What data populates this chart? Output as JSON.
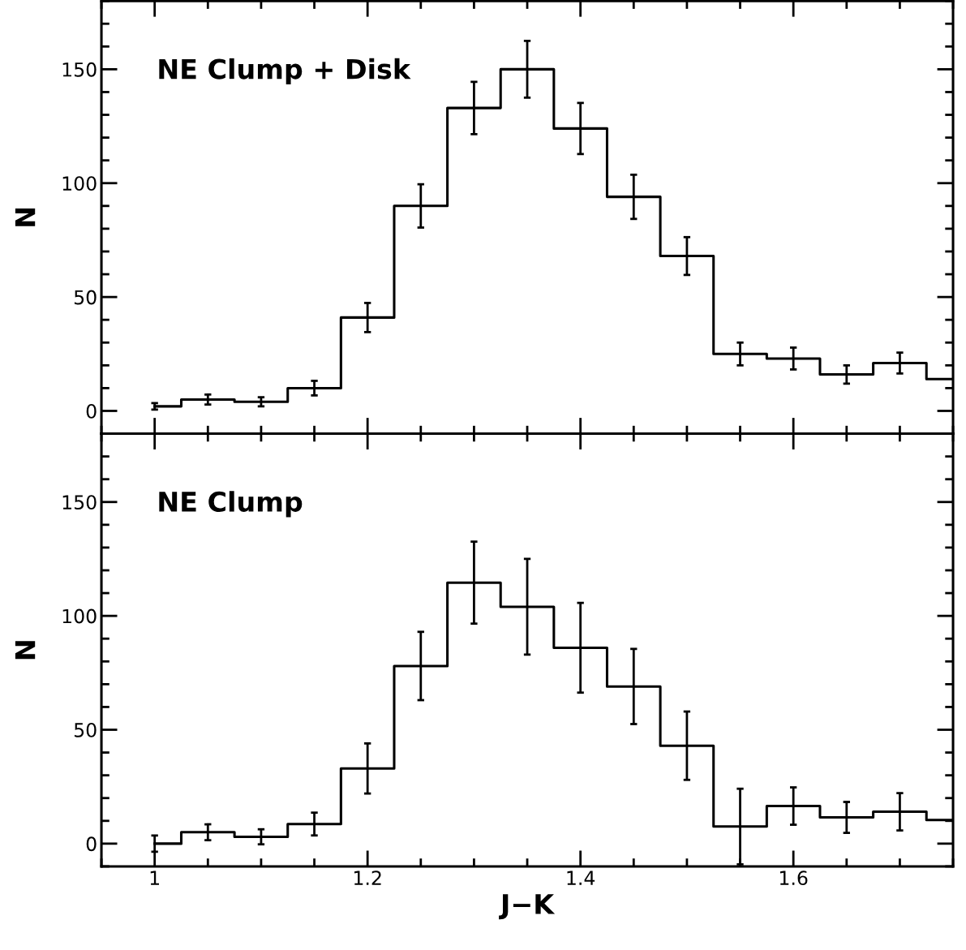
{
  "chart_data": [
    {
      "type": "step",
      "ylabel": "N",
      "annotations": [
        "NE Clump + Disk"
      ],
      "x": [
        1.0,
        1.05,
        1.1,
        1.15,
        1.2,
        1.25,
        1.3,
        1.35,
        1.4,
        1.45,
        1.5,
        1.55,
        1.6,
        1.65,
        1.7,
        1.75
      ],
      "values": [
        2,
        5,
        4,
        10,
        41,
        90,
        133,
        150,
        124,
        94,
        68,
        25,
        23,
        16,
        21,
        14
      ],
      "errors": [
        1.4,
        2.2,
        2,
        3.2,
        6.4,
        9.5,
        11.5,
        12.5,
        11.2,
        9.7,
        8.3,
        5,
        4.8,
        4,
        4.6,
        null
      ],
      "color": "#000000",
      "xlim": [
        0.95,
        1.75
      ],
      "xticks": [
        1,
        1.2,
        1.4,
        1.6
      ],
      "ylim": [
        -10,
        180
      ],
      "yticks": [
        0,
        50,
        100,
        150
      ],
      "tick_labels": "y"
    },
    {
      "type": "step",
      "xlabel": "J−K",
      "ylabel": "N",
      "annotations": [
        "NE Clump"
      ],
      "x": [
        1.0,
        1.05,
        1.1,
        1.15,
        1.2,
        1.25,
        1.3,
        1.35,
        1.4,
        1.45,
        1.5,
        1.55,
        1.6,
        1.65,
        1.7,
        1.75
      ],
      "values": [
        0,
        5,
        3,
        8.6,
        33,
        78,
        114.6,
        104,
        86,
        69,
        43,
        7.5,
        16.5,
        11.5,
        14,
        10.4
      ],
      "errors": [
        3.6,
        3.5,
        3.3,
        5,
        11,
        15,
        18,
        21,
        19.7,
        16.5,
        15,
        16.6,
        8.2,
        6.8,
        8.2,
        null
      ],
      "color": "#000000",
      "xlim": [
        0.95,
        1.75
      ],
      "xticks": [
        1,
        1.2,
        1.4,
        1.6
      ],
      "ylim": [
        -10,
        180
      ],
      "yticks": [
        0,
        50,
        100,
        150
      ]
    }
  ]
}
